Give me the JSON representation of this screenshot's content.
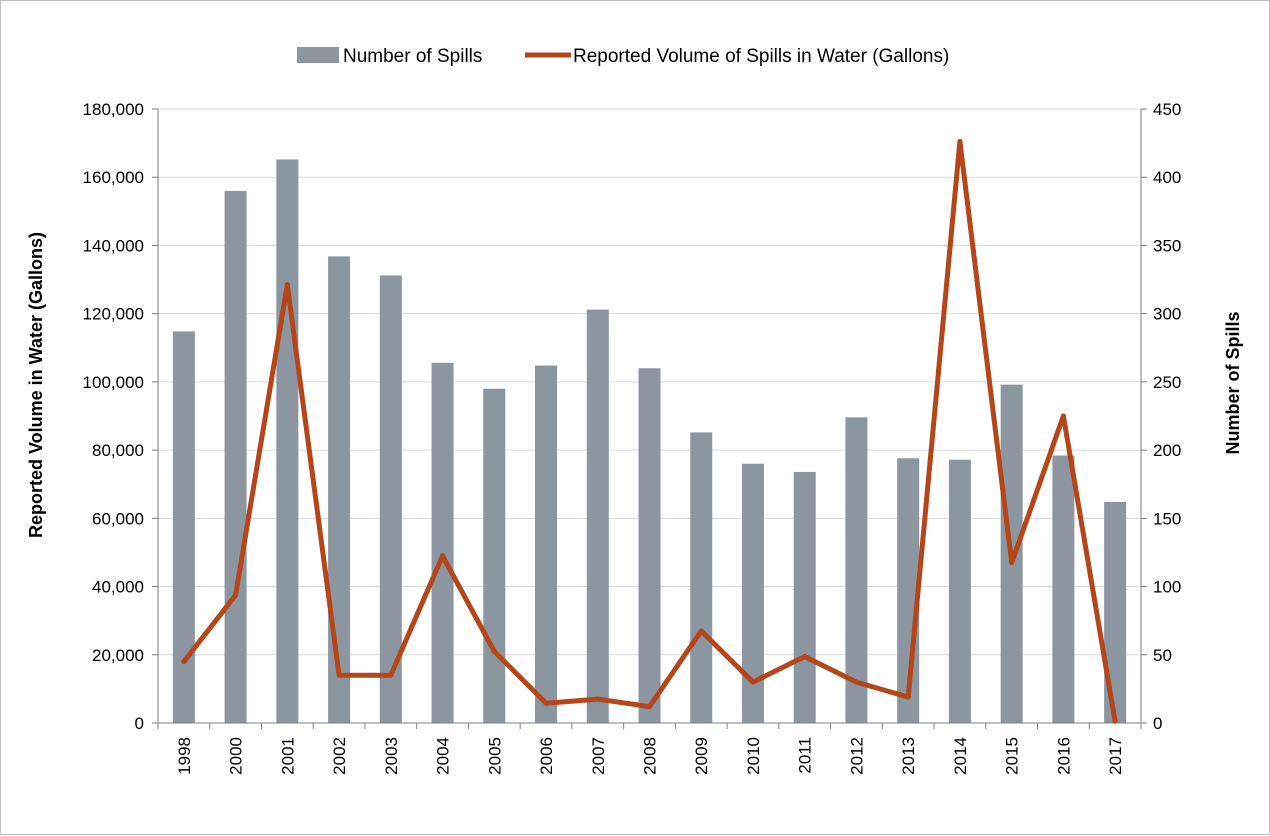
{
  "chart_data": {
    "type": "bar+line",
    "categories": [
      "1998",
      "2000",
      "2001",
      "2002",
      "2003",
      "2004",
      "2005",
      "2006",
      "2007",
      "2008",
      "2009",
      "2010",
      "2011",
      "2012",
      "2013",
      "2014",
      "2015",
      "2016",
      "2017"
    ],
    "series": [
      {
        "name": "Number of Spills",
        "type": "bar",
        "axis": "right",
        "color": "#8c96a0",
        "values": [
          287,
          390,
          413,
          342,
          328,
          264,
          245,
          262,
          303,
          260,
          213,
          190,
          184,
          224,
          194,
          193,
          248,
          196,
          162
        ]
      },
      {
        "name": "Reported Volume of Spills in Water (Gallons)",
        "type": "line",
        "axis": "left",
        "color": "#b5461a",
        "values": [
          18000,
          37500,
          128500,
          14000,
          14000,
          49000,
          21000,
          5800,
          7000,
          4800,
          27000,
          12000,
          19500,
          12000,
          7600,
          170500,
          47000,
          90000,
          500
        ]
      }
    ],
    "y_left": {
      "label": "Reported Volume in Water (Gallons)",
      "ylim": [
        0,
        180000
      ],
      "ticks": [
        "0",
        "20,000",
        "40,000",
        "60,000",
        "80,000",
        "100,000",
        "120,000",
        "140,000",
        "160,000",
        "180,000"
      ]
    },
    "y_right": {
      "label": "Number of Spills",
      "ylim": [
        0,
        450
      ],
      "ticks": [
        "0",
        "50",
        "100",
        "150",
        "200",
        "250",
        "300",
        "350",
        "400",
        "450"
      ]
    },
    "grid": true,
    "legend_position": "top-center"
  }
}
